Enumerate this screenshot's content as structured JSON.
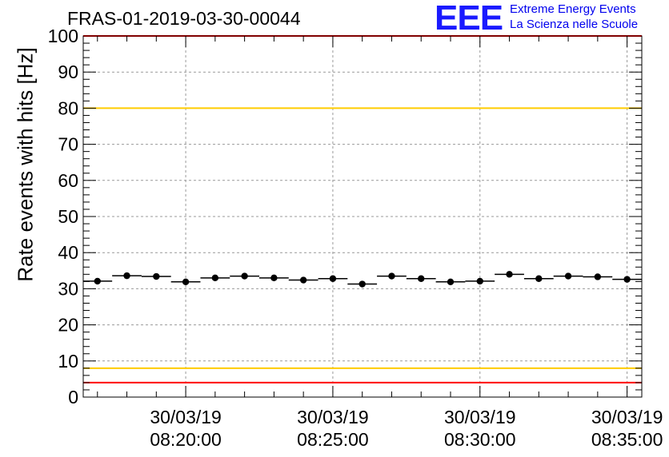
{
  "chart_data": {
    "type": "scatter",
    "title": "FRAS-01-2019-03-30-00044",
    "ylabel": "Rate events with hits [Hz]",
    "xlabel": "",
    "ylim": [
      0,
      100
    ],
    "yticks": [
      "0",
      "10",
      "20",
      "30",
      "40",
      "50",
      "60",
      "70",
      "80",
      "90",
      "100"
    ],
    "xlim": [
      "08:16:31",
      "08:35:30"
    ],
    "xticks": [
      {
        "date": "30/03/19",
        "time": "08:20:00"
      },
      {
        "date": "30/03/19",
        "time": "08:25:00"
      },
      {
        "date": "30/03/19",
        "time": "08:30:00"
      },
      {
        "date": "30/03/19",
        "time": "08:35:00"
      }
    ],
    "bin_width_seconds": 60,
    "grid": true,
    "series": [
      {
        "name": "rate",
        "x": [
          "08:17:00",
          "08:18:00",
          "08:19:00",
          "08:20:00",
          "08:21:00",
          "08:22:00",
          "08:23:00",
          "08:24:00",
          "08:25:00",
          "08:26:00",
          "08:27:00",
          "08:28:00",
          "08:29:00",
          "08:30:00",
          "08:31:00",
          "08:32:00",
          "08:33:00",
          "08:34:00",
          "08:35:00"
        ],
        "values": [
          32.1,
          33.6,
          33.4,
          31.9,
          33.0,
          33.5,
          33.0,
          32.4,
          32.8,
          31.3,
          33.5,
          32.8,
          31.9,
          32.1,
          34.0,
          32.8,
          33.5,
          33.3,
          32.6
        ]
      }
    ],
    "reference_lines": [
      {
        "value": 100,
        "color": "#ff0000"
      },
      {
        "value": 80,
        "color": "#ffcc00"
      },
      {
        "value": 8,
        "color": "#ffcc00"
      },
      {
        "value": 4,
        "color": "#ff0000"
      }
    ]
  },
  "logo": {
    "mark": "EEE",
    "line1": "Extreme Energy Events",
    "line2": "La Scienza nelle Scuole",
    "color": "#0000ee"
  }
}
